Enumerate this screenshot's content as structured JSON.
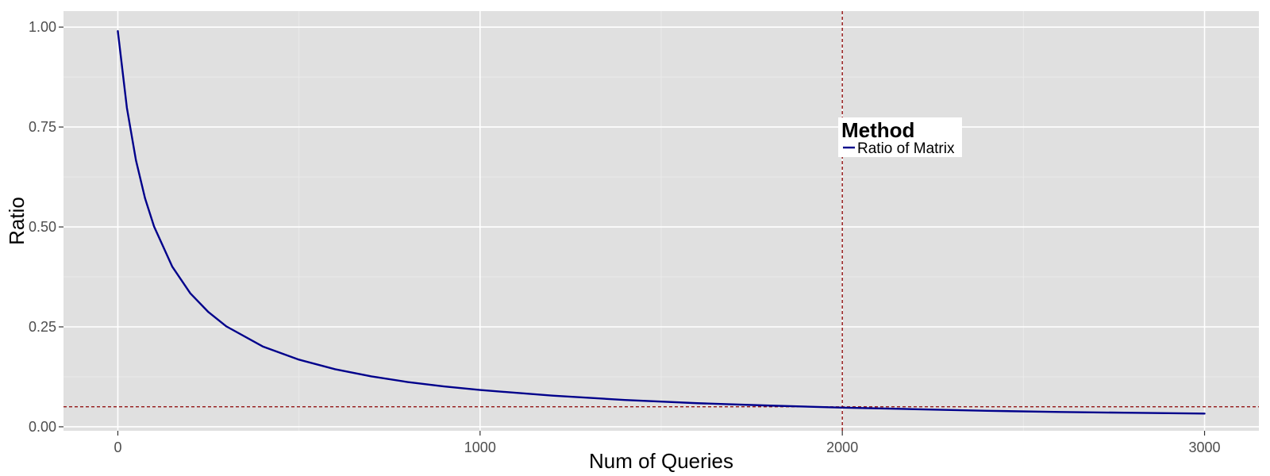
{
  "chart_data": {
    "type": "line",
    "title": "",
    "xlabel": "Num of Queries",
    "ylabel": "Ratio",
    "xlim": [
      -150,
      3150
    ],
    "ylim": [
      -0.01,
      1.04
    ],
    "x_ticks": [
      0,
      1000,
      2000,
      3000
    ],
    "x_tick_labels": [
      "0",
      "1000",
      "2000",
      "3000"
    ],
    "y_ticks": [
      0.0,
      0.25,
      0.5,
      0.75,
      1.0
    ],
    "y_tick_labels": [
      "0.00",
      "0.25",
      "0.50",
      "0.75",
      "1.00"
    ],
    "grid": true,
    "legend": {
      "title": "Method",
      "placement": "inside-center-right"
    },
    "series": [
      {
        "name": "Ratio of Matrix",
        "color": "#00008b",
        "x": [
          0,
          25,
          50,
          75,
          100,
          150,
          200,
          250,
          300,
          400,
          500,
          600,
          700,
          800,
          900,
          1000,
          1200,
          1400,
          1600,
          1800,
          2000,
          2200,
          2400,
          2600,
          2800,
          3000
        ],
        "y": [
          0.99,
          0.798,
          0.667,
          0.572,
          0.501,
          0.401,
          0.334,
          0.287,
          0.251,
          0.201,
          0.168,
          0.144,
          0.126,
          0.112,
          0.101,
          0.092,
          0.078,
          0.067,
          0.059,
          0.053,
          0.048,
          0.044,
          0.04,
          0.037,
          0.035,
          0.033
        ]
      }
    ],
    "reference_lines": [
      {
        "orientation": "vertical",
        "value": 2000,
        "color": "#8b0000",
        "style": "dashed"
      },
      {
        "orientation": "horizontal",
        "value": 0.05,
        "color": "#8b0000",
        "style": "dashed"
      }
    ],
    "colors": {
      "panel_background": "#e0e0e0",
      "grid_major": "#ffffff",
      "grid_minor": "#eaeaea"
    }
  }
}
